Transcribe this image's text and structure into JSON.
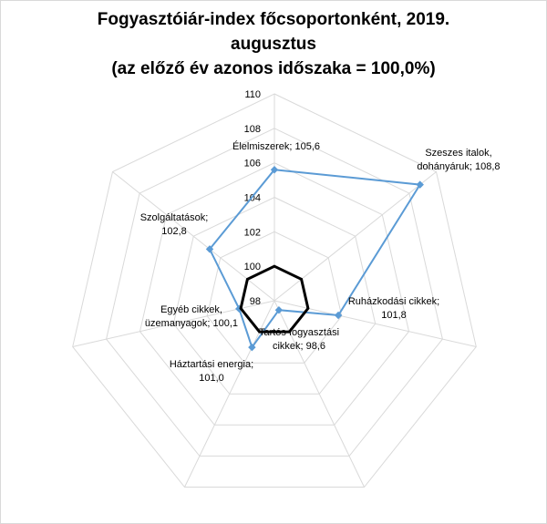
{
  "title_lines": [
    "Fogyasztóiár-index főcsoportonként, 2019.",
    "augusztus",
    "(az előző év azonos időszaka = 100,0%)"
  ],
  "chart_data": {
    "type": "radar",
    "rmin": 98,
    "rmax": 110,
    "tick_step": 2,
    "tick_labels": [
      "98",
      "100",
      "102",
      "104",
      "106",
      "108",
      "110"
    ],
    "grid": true,
    "legend": "none",
    "categories": [
      {
        "lines": [
          "Élelmiszerek; 105,6"
        ]
      },
      {
        "lines": [
          "Szeszes italok,",
          "dohányáruk; 108,8"
        ]
      },
      {
        "lines": [
          "Ruházkodási cikkek;",
          "101,8"
        ]
      },
      {
        "lines": [
          "Tartós fogyasztási",
          "cikkek; 98,6"
        ]
      },
      {
        "lines": [
          "Háztartási energia;",
          "101,0"
        ]
      },
      {
        "lines": [
          "Egyéb cikkek,",
          "üzemanyagok; 100,1"
        ]
      },
      {
        "lines": [
          "Szolgáltatások;",
          "102,8"
        ]
      }
    ],
    "series": [
      {
        "values": [
          105.6,
          108.8,
          101.8,
          98.6,
          101.0,
          100.1,
          102.8
        ],
        "color": "#5b9bd5",
        "marker": "diamond"
      },
      {
        "values": [
          100,
          100,
          100,
          100,
          100,
          100,
          100
        ],
        "color": "#000000",
        "marker": "none"
      }
    ]
  }
}
